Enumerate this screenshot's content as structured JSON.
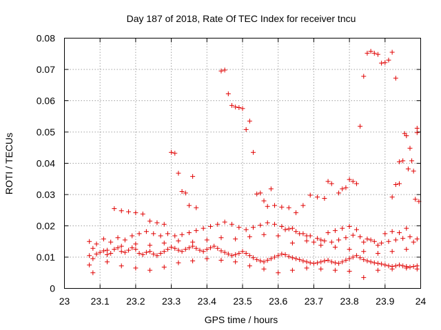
{
  "chart_data": {
    "type": "scatter",
    "title": "Day 187 of 2018, Rate Of TEC Index for receiver tncu",
    "xlabel": "GPS time / hours",
    "ylabel": "ROTI / TECUs",
    "xlim": [
      23,
      24
    ],
    "ylim": [
      0,
      0.08
    ],
    "grid": true,
    "marker": "+",
    "color": "#e00000",
    "x_ticks": [
      23,
      23.1,
      23.2,
      23.3,
      23.4,
      23.5,
      23.6,
      23.7,
      23.8,
      23.9,
      24
    ],
    "x_tick_labels": [
      "23",
      "23.1",
      "23.2",
      "23.3",
      "23.4",
      "23.5",
      "23.6",
      "23.7",
      "23.8",
      "23.9",
      "24"
    ],
    "y_ticks": [
      0,
      0.01,
      0.02,
      0.03,
      0.04,
      0.05,
      0.06,
      0.07,
      0.08
    ],
    "y_tick_labels": [
      "0",
      "0.01",
      "0.02",
      "0.03",
      "0.04",
      "0.05",
      "0.06",
      "0.07",
      "0.08"
    ],
    "series": [
      {
        "name": "ROTI",
        "points": [
          [
            23.07,
            0.0105
          ],
          [
            23.08,
            0.0095
          ],
          [
            23.09,
            0.011
          ],
          [
            23.1,
            0.0115
          ],
          [
            23.11,
            0.012
          ],
          [
            23.12,
            0.0108
          ],
          [
            23.13,
            0.0112
          ],
          [
            23.14,
            0.0125
          ],
          [
            23.15,
            0.013
          ],
          [
            23.16,
            0.0118
          ],
          [
            23.17,
            0.0115
          ],
          [
            23.18,
            0.0122
          ],
          [
            23.19,
            0.013
          ],
          [
            23.2,
            0.0125
          ],
          [
            23.21,
            0.0112
          ],
          [
            23.22,
            0.0108
          ],
          [
            23.23,
            0.0115
          ],
          [
            23.24,
            0.0118
          ],
          [
            23.25,
            0.011
          ],
          [
            23.26,
            0.0105
          ],
          [
            23.27,
            0.0112
          ],
          [
            23.28,
            0.0118
          ],
          [
            23.29,
            0.0125
          ],
          [
            23.3,
            0.0132
          ],
          [
            23.31,
            0.0128
          ],
          [
            23.32,
            0.0122
          ],
          [
            23.33,
            0.0118
          ],
          [
            23.34,
            0.0125
          ],
          [
            23.35,
            0.013
          ],
          [
            23.36,
            0.0135
          ],
          [
            23.37,
            0.0128
          ],
          [
            23.38,
            0.0122
          ],
          [
            23.39,
            0.0118
          ],
          [
            23.4,
            0.0125
          ],
          [
            23.41,
            0.013
          ],
          [
            23.42,
            0.0135
          ],
          [
            23.43,
            0.0128
          ],
          [
            23.44,
            0.012
          ],
          [
            23.45,
            0.0115
          ],
          [
            23.46,
            0.011
          ],
          [
            23.47,
            0.0105
          ],
          [
            23.48,
            0.0108
          ],
          [
            23.49,
            0.0112
          ],
          [
            23.5,
            0.0118
          ],
          [
            23.51,
            0.0112
          ],
          [
            23.52,
            0.0105
          ],
          [
            23.53,
            0.0098
          ],
          [
            23.54,
            0.0092
          ],
          [
            23.55,
            0.0088
          ],
          [
            23.56,
            0.0085
          ],
          [
            23.57,
            0.009
          ],
          [
            23.58,
            0.0095
          ],
          [
            23.59,
            0.01
          ],
          [
            23.6,
            0.0105
          ],
          [
            23.61,
            0.011
          ],
          [
            23.62,
            0.0108
          ],
          [
            23.63,
            0.0102
          ],
          [
            23.64,
            0.0098
          ],
          [
            23.65,
            0.0095
          ],
          [
            23.66,
            0.0092
          ],
          [
            23.67,
            0.0088
          ],
          [
            23.68,
            0.0085
          ],
          [
            23.69,
            0.0082
          ],
          [
            23.7,
            0.008
          ],
          [
            23.71,
            0.0082
          ],
          [
            23.72,
            0.0085
          ],
          [
            23.73,
            0.0088
          ],
          [
            23.74,
            0.009
          ],
          [
            23.75,
            0.0085
          ],
          [
            23.76,
            0.0082
          ],
          [
            23.77,
            0.008
          ],
          [
            23.78,
            0.0085
          ],
          [
            23.79,
            0.009
          ],
          [
            23.8,
            0.0095
          ],
          [
            23.81,
            0.01
          ],
          [
            23.82,
            0.0105
          ],
          [
            23.83,
            0.0098
          ],
          [
            23.84,
            0.0092
          ],
          [
            23.85,
            0.0088
          ],
          [
            23.86,
            0.0085
          ],
          [
            23.87,
            0.0082
          ],
          [
            23.88,
            0.008
          ],
          [
            23.89,
            0.0078
          ],
          [
            23.9,
            0.0075
          ],
          [
            23.91,
            0.0072
          ],
          [
            23.92,
            0.007
          ],
          [
            23.93,
            0.0072
          ],
          [
            23.94,
            0.0075
          ],
          [
            23.95,
            0.0072
          ],
          [
            23.96,
            0.007
          ],
          [
            23.97,
            0.0068
          ],
          [
            23.98,
            0.007
          ],
          [
            23.99,
            0.0072
          ],
          [
            23.07,
            0.015
          ],
          [
            23.09,
            0.0142
          ],
          [
            23.11,
            0.0158
          ],
          [
            23.13,
            0.0148
          ],
          [
            23.15,
            0.0162
          ],
          [
            23.17,
            0.0155
          ],
          [
            23.19,
            0.0168
          ],
          [
            23.21,
            0.0175
          ],
          [
            23.23,
            0.0182
          ],
          [
            23.25,
            0.0175
          ],
          [
            23.27,
            0.0168
          ],
          [
            23.29,
            0.0175
          ],
          [
            23.31,
            0.0168
          ],
          [
            23.33,
            0.0172
          ],
          [
            23.35,
            0.0178
          ],
          [
            23.37,
            0.0185
          ],
          [
            23.39,
            0.0192
          ],
          [
            23.41,
            0.0198
          ],
          [
            23.43,
            0.0205
          ],
          [
            23.45,
            0.0212
          ],
          [
            23.47,
            0.0205
          ],
          [
            23.49,
            0.0195
          ],
          [
            23.51,
            0.0188
          ],
          [
            23.53,
            0.0195
          ],
          [
            23.55,
            0.0202
          ],
          [
            23.57,
            0.021
          ],
          [
            23.59,
            0.0205
          ],
          [
            23.61,
            0.0198
          ],
          [
            23.63,
            0.019
          ],
          [
            23.65,
            0.0182
          ],
          [
            23.67,
            0.0175
          ],
          [
            23.69,
            0.0168
          ],
          [
            23.71,
            0.016
          ],
          [
            23.73,
            0.0152
          ],
          [
            23.75,
            0.0148
          ],
          [
            23.77,
            0.0155
          ],
          [
            23.79,
            0.0162
          ],
          [
            23.81,
            0.017
          ],
          [
            23.83,
            0.0165
          ],
          [
            23.85,
            0.0158
          ],
          [
            23.87,
            0.015
          ],
          [
            23.89,
            0.0145
          ],
          [
            23.91,
            0.015
          ],
          [
            23.93,
            0.0155
          ],
          [
            23.95,
            0.016
          ],
          [
            23.97,
            0.0165
          ],
          [
            23.99,
            0.0158
          ],
          [
            23.14,
            0.0255
          ],
          [
            23.16,
            0.0248
          ],
          [
            23.18,
            0.0245
          ],
          [
            23.2,
            0.0242
          ],
          [
            23.22,
            0.0238
          ],
          [
            23.24,
            0.0215
          ],
          [
            23.26,
            0.021
          ],
          [
            23.28,
            0.0205
          ],
          [
            23.3,
            0.0435
          ],
          [
            23.31,
            0.0432
          ],
          [
            23.32,
            0.0368
          ],
          [
            23.33,
            0.031
          ],
          [
            23.34,
            0.0305
          ],
          [
            23.35,
            0.0265
          ],
          [
            23.36,
            0.0358
          ],
          [
            23.37,
            0.0258
          ],
          [
            23.44,
            0.0695
          ],
          [
            23.45,
            0.0698
          ],
          [
            23.46,
            0.0622
          ],
          [
            23.47,
            0.0585
          ],
          [
            23.48,
            0.058
          ],
          [
            23.49,
            0.0578
          ],
          [
            23.5,
            0.0575
          ],
          [
            23.51,
            0.0508
          ],
          [
            23.52,
            0.0535
          ],
          [
            23.53,
            0.0435
          ],
          [
            23.54,
            0.0302
          ],
          [
            23.55,
            0.0305
          ],
          [
            23.56,
            0.028
          ],
          [
            23.57,
            0.0262
          ],
          [
            23.58,
            0.0318
          ],
          [
            23.59,
            0.0265
          ],
          [
            23.61,
            0.026
          ],
          [
            23.63,
            0.0258
          ],
          [
            23.65,
            0.0242
          ],
          [
            23.67,
            0.0265
          ],
          [
            23.69,
            0.0298
          ],
          [
            23.71,
            0.0292
          ],
          [
            23.73,
            0.0288
          ],
          [
            23.74,
            0.0342
          ],
          [
            23.75,
            0.0335
          ],
          [
            23.77,
            0.0305
          ],
          [
            23.78,
            0.0318
          ],
          [
            23.79,
            0.0322
          ],
          [
            23.8,
            0.0348
          ],
          [
            23.81,
            0.0342
          ],
          [
            23.82,
            0.0335
          ],
          [
            23.83,
            0.0518
          ],
          [
            23.84,
            0.0678
          ],
          [
            23.85,
            0.0752
          ],
          [
            23.86,
            0.0758
          ],
          [
            23.87,
            0.0752
          ],
          [
            23.88,
            0.0748
          ],
          [
            23.89,
            0.072
          ],
          [
            23.9,
            0.0722
          ],
          [
            23.91,
            0.073
          ],
          [
            23.92,
            0.0755
          ],
          [
            23.93,
            0.0672
          ],
          [
            23.94,
            0.0405
          ],
          [
            23.95,
            0.0408
          ],
          [
            23.96,
            0.0488
          ],
          [
            23.97,
            0.0448
          ],
          [
            23.98,
            0.0375
          ],
          [
            23.99,
            0.0498
          ],
          [
            23.99,
            0.0512
          ],
          [
            23.955,
            0.0495
          ],
          [
            23.965,
            0.0382
          ],
          [
            23.975,
            0.0408
          ],
          [
            23.985,
            0.0285
          ],
          [
            23.995,
            0.0278
          ],
          [
            23.94,
            0.0335
          ],
          [
            23.93,
            0.0332
          ],
          [
            23.92,
            0.0292
          ],
          [
            23.07,
            0.0075
          ],
          [
            23.08,
            0.005
          ],
          [
            23.12,
            0.0085
          ],
          [
            23.16,
            0.0072
          ],
          [
            23.2,
            0.0065
          ],
          [
            23.24,
            0.0058
          ],
          [
            23.28,
            0.0068
          ],
          [
            23.32,
            0.0082
          ],
          [
            23.36,
            0.0088
          ],
          [
            23.4,
            0.0095
          ],
          [
            23.44,
            0.009
          ],
          [
            23.48,
            0.0085
          ],
          [
            23.52,
            0.0072
          ],
          [
            23.56,
            0.0062
          ],
          [
            23.6,
            0.005
          ],
          [
            23.64,
            0.0058
          ],
          [
            23.68,
            0.0065
          ],
          [
            23.72,
            0.0062
          ],
          [
            23.76,
            0.0058
          ],
          [
            23.8,
            0.0055
          ],
          [
            23.84,
            0.0035
          ],
          [
            23.88,
            0.0058
          ],
          [
            23.92,
            0.0062
          ],
          [
            23.96,
            0.0065
          ],
          [
            23.99,
            0.0062
          ],
          [
            23.08,
            0.0128
          ],
          [
            23.12,
            0.0122
          ],
          [
            23.16,
            0.0135
          ],
          [
            23.2,
            0.0142
          ],
          [
            23.24,
            0.0138
          ],
          [
            23.28,
            0.0145
          ],
          [
            23.32,
            0.0152
          ],
          [
            23.36,
            0.0148
          ],
          [
            23.4,
            0.0155
          ],
          [
            23.44,
            0.0162
          ],
          [
            23.48,
            0.0158
          ],
          [
            23.52,
            0.0165
          ],
          [
            23.56,
            0.0172
          ],
          [
            23.6,
            0.0168
          ],
          [
            23.64,
            0.0145
          ],
          [
            23.68,
            0.0152
          ],
          [
            23.72,
            0.0138
          ],
          [
            23.76,
            0.0132
          ],
          [
            23.8,
            0.0125
          ],
          [
            23.84,
            0.0118
          ],
          [
            23.88,
            0.0112
          ],
          [
            23.92,
            0.0118
          ],
          [
            23.96,
            0.0125
          ],
          [
            23.62,
            0.0188
          ],
          [
            23.64,
            0.0192
          ],
          [
            23.66,
            0.0175
          ],
          [
            23.68,
            0.0168
          ],
          [
            23.7,
            0.0148
          ],
          [
            23.72,
            0.0155
          ],
          [
            23.74,
            0.0178
          ],
          [
            23.76,
            0.0185
          ],
          [
            23.78,
            0.0192
          ],
          [
            23.8,
            0.0198
          ],
          [
            23.82,
            0.0188
          ],
          [
            23.84,
            0.0148
          ],
          [
            23.86,
            0.0155
          ],
          [
            23.88,
            0.0138
          ],
          [
            23.9,
            0.0175
          ],
          [
            23.92,
            0.0182
          ],
          [
            23.94,
            0.0178
          ],
          [
            23.96,
            0.0192
          ],
          [
            23.98,
            0.0148
          ]
        ]
      }
    ]
  }
}
